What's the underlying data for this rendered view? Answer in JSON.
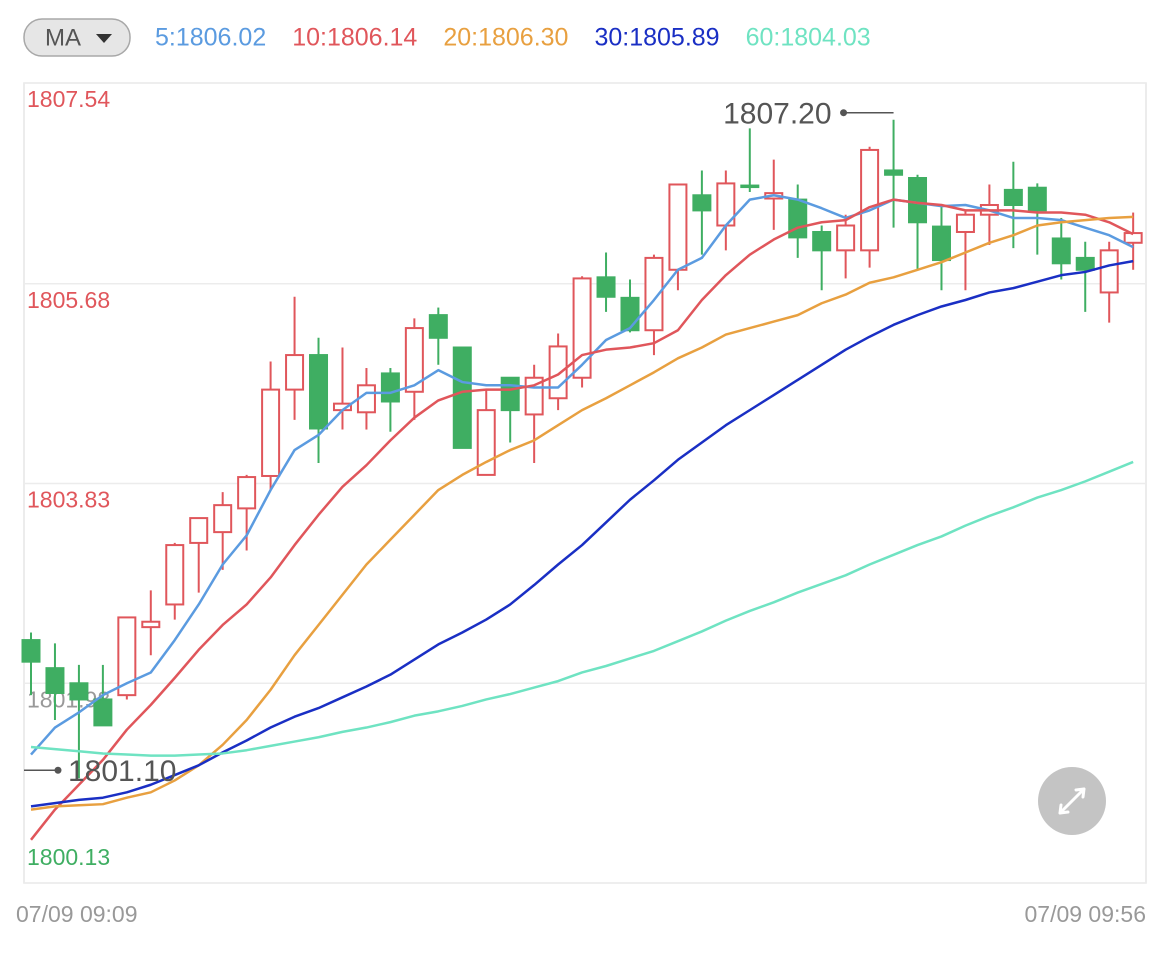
{
  "chart_data": {
    "type": "candlestick",
    "indicator": "MA",
    "categories": [
      "07/09 09:09",
      null,
      null,
      null,
      null,
      null,
      null,
      null,
      null,
      null,
      null,
      null,
      null,
      null,
      null,
      null,
      null,
      null,
      null,
      null,
      null,
      null,
      null,
      null,
      null,
      null,
      null,
      null,
      null,
      null,
      null,
      null,
      null,
      null,
      null,
      null,
      null,
      null,
      null,
      null,
      null,
      null,
      null,
      null,
      null,
      null,
      "07/09 09:56"
    ],
    "open": [
      1802.38,
      1802.12,
      1801.98,
      1801.83,
      1801.87,
      1802.5,
      1802.71,
      1803.28,
      1803.38,
      1803.6,
      1803.9,
      1804.7,
      1805.02,
      1804.51,
      1804.49,
      1804.85,
      1804.68,
      1805.39,
      1805.09,
      1803.91,
      1804.81,
      1804.47,
      1804.62,
      1804.81,
      1805.74,
      1805.55,
      1805.25,
      1805.81,
      1806.5,
      1806.22,
      1806.59,
      1806.47,
      1806.46,
      1806.16,
      1805.99,
      1805.99,
      1806.73,
      1806.66,
      1806.21,
      1806.16,
      1806.32,
      1806.55,
      1806.57,
      1806.1,
      1805.92,
      1805.6,
      1806.06
    ],
    "high": [
      1802.45,
      1802.35,
      1802.15,
      1802.15,
      1802.59,
      1802.84,
      1803.28,
      1803.51,
      1803.75,
      1803.91,
      1804.96,
      1805.56,
      1805.18,
      1805.09,
      1804.9,
      1804.9,
      1805.36,
      1805.46,
      1805.09,
      1804.7,
      1804.81,
      1804.93,
      1805.22,
      1805.75,
      1805.97,
      1805.72,
      1805.95,
      1806.6,
      1806.73,
      1806.73,
      1807.12,
      1806.83,
      1806.6,
      1806.22,
      1806.32,
      1806.95,
      1807.2,
      1806.69,
      1806.41,
      1806.36,
      1806.6,
      1806.81,
      1806.61,
      1806.29,
      1806.07,
      1806.07,
      1806.34
    ],
    "low": [
      1801.87,
      1801.64,
      1801.1,
      1801.59,
      1801.83,
      1802.24,
      1802.57,
      1802.82,
      1803.03,
      1803.21,
      1803.77,
      1804.42,
      1804.02,
      1804.33,
      1804.33,
      1804.31,
      1804.42,
      1804.93,
      1804.16,
      1803.91,
      1804.21,
      1804.02,
      1804.51,
      1804.72,
      1805.42,
      1805.23,
      1805.02,
      1805.62,
      1805.95,
      1805.99,
      1806.53,
      1806.18,
      1805.92,
      1805.62,
      1805.73,
      1805.83,
      1806.2,
      1805.81,
      1805.62,
      1805.62,
      1806.04,
      1806.01,
      1805.95,
      1805.72,
      1805.42,
      1805.32,
      1805.81
    ],
    "close": [
      1802.18,
      1801.89,
      1801.83,
      1801.59,
      1802.59,
      1802.55,
      1803.26,
      1803.51,
      1803.63,
      1803.89,
      1804.7,
      1805.02,
      1804.34,
      1804.57,
      1804.74,
      1804.59,
      1805.27,
      1805.18,
      1804.16,
      1804.51,
      1804.51,
      1804.81,
      1805.1,
      1805.73,
      1805.56,
      1805.25,
      1805.92,
      1806.6,
      1806.36,
      1806.61,
      1806.58,
      1806.52,
      1806.11,
      1805.99,
      1806.22,
      1806.92,
      1806.69,
      1806.25,
      1805.9,
      1806.32,
      1806.41,
      1806.41,
      1806.36,
      1805.87,
      1805.81,
      1805.99,
      1806.15
    ],
    "up_color": "#e0565b",
    "down_color": "#3fae62",
    "series": [
      {
        "name": "5:1806.02",
        "color": "#5b9be0",
        "values": [
          1801.32,
          1801.57,
          1801.71,
          1801.87,
          1801.98,
          1802.08,
          1802.38,
          1802.71,
          1803.08,
          1803.35,
          1803.77,
          1804.14,
          1804.28,
          1804.51,
          1804.67,
          1804.67,
          1804.74,
          1804.88,
          1804.77,
          1804.74,
          1804.74,
          1804.72,
          1804.72,
          1804.93,
          1805.16,
          1805.27,
          1805.53,
          1805.81,
          1805.92,
          1806.22,
          1806.46,
          1806.5,
          1806.46,
          1806.38,
          1806.29,
          1806.36,
          1806.46,
          1806.43,
          1806.4,
          1806.41,
          1806.36,
          1806.29,
          1806.29,
          1806.27,
          1806.2,
          1806.13,
          1806.02
        ]
      },
      {
        "name": "10:1806.14",
        "color": "#e0565b",
        "values": [
          1800.53,
          1800.81,
          1801.04,
          1801.27,
          1801.55,
          1801.78,
          1802.03,
          1802.29,
          1802.52,
          1802.71,
          1802.96,
          1803.26,
          1803.54,
          1803.8,
          1804.0,
          1804.23,
          1804.44,
          1804.6,
          1804.68,
          1804.7,
          1804.7,
          1804.74,
          1804.84,
          1805.02,
          1805.07,
          1805.09,
          1805.13,
          1805.25,
          1805.53,
          1805.76,
          1805.95,
          1806.09,
          1806.2,
          1806.25,
          1806.27,
          1806.39,
          1806.46,
          1806.43,
          1806.41,
          1806.36,
          1806.36,
          1806.36,
          1806.34,
          1806.34,
          1806.32,
          1806.25,
          1806.14
        ]
      },
      {
        "name": "20:1806.30",
        "color": "#e8a040",
        "values": [
          1800.81,
          1800.84,
          1800.85,
          1800.86,
          1800.92,
          1800.97,
          1801.08,
          1801.22,
          1801.41,
          1801.64,
          1801.92,
          1802.24,
          1802.52,
          1802.8,
          1803.08,
          1803.31,
          1803.54,
          1803.77,
          1803.91,
          1804.03,
          1804.14,
          1804.23,
          1804.37,
          1804.51,
          1804.62,
          1804.74,
          1804.86,
          1804.99,
          1805.09,
          1805.21,
          1805.27,
          1805.33,
          1805.39,
          1805.5,
          1805.58,
          1805.69,
          1805.74,
          1805.81,
          1805.88,
          1805.97,
          1806.06,
          1806.13,
          1806.22,
          1806.25,
          1806.27,
          1806.29,
          1806.3
        ]
      },
      {
        "name": "30:1805.89",
        "color": "#1a2fc4",
        "values": [
          1800.84,
          1800.87,
          1800.9,
          1800.92,
          1800.97,
          1801.04,
          1801.13,
          1801.22,
          1801.34,
          1801.45,
          1801.57,
          1801.67,
          1801.75,
          1801.85,
          1801.95,
          1802.06,
          1802.2,
          1802.34,
          1802.45,
          1802.57,
          1802.71,
          1802.89,
          1803.08,
          1803.26,
          1803.47,
          1803.68,
          1803.86,
          1804.05,
          1804.21,
          1804.37,
          1804.51,
          1804.65,
          1804.79,
          1804.93,
          1805.07,
          1805.19,
          1805.3,
          1805.39,
          1805.47,
          1805.53,
          1805.6,
          1805.64,
          1805.7,
          1805.76,
          1805.79,
          1805.85,
          1805.89
        ]
      },
      {
        "name": "60:1804.03",
        "color": "#6fe3c2",
        "values": [
          1801.39,
          1801.37,
          1801.35,
          1801.33,
          1801.32,
          1801.31,
          1801.31,
          1801.32,
          1801.33,
          1801.36,
          1801.4,
          1801.44,
          1801.48,
          1801.53,
          1801.57,
          1801.62,
          1801.68,
          1801.72,
          1801.77,
          1801.83,
          1801.88,
          1801.94,
          1802.0,
          1802.08,
          1802.14,
          1802.21,
          1802.28,
          1802.37,
          1802.46,
          1802.56,
          1802.65,
          1802.73,
          1802.82,
          1802.9,
          1802.98,
          1803.08,
          1803.17,
          1803.26,
          1803.34,
          1803.44,
          1803.53,
          1803.61,
          1803.7,
          1803.77,
          1803.85,
          1803.94,
          1804.03
        ]
      }
    ],
    "ylim": [
      1800.13,
      1807.54
    ],
    "yticks": [
      1807.54,
      1805.68,
      1803.83,
      1801.98,
      1800.13
    ],
    "ytick_colors": [
      "#e0565b",
      "#e0565b",
      "#e0565b",
      "#999999",
      "#3fae62"
    ],
    "grid": true,
    "annotations": [
      "1807.20",
      "1801.10"
    ]
  }
}
